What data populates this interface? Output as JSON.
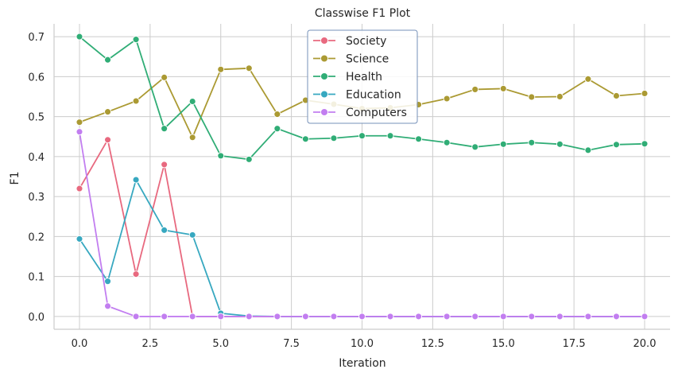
{
  "chart_data": {
    "type": "line",
    "title": "Classwise F1 Plot",
    "xlabel": "Iteration",
    "ylabel": "F1",
    "xlim": [
      -0.9,
      20.9
    ],
    "ylim": [
      -0.032,
      0.732
    ],
    "xticks": [
      0,
      2.5,
      5,
      7.5,
      10,
      12.5,
      15,
      17.5,
      20
    ],
    "xtick_labels": [
      "0.0",
      "2.5",
      "5.0",
      "7.5",
      "10.0",
      "12.5",
      "15.0",
      "17.5",
      "20.0"
    ],
    "yticks": [
      0,
      0.1,
      0.2,
      0.3,
      0.4,
      0.5,
      0.6,
      0.7
    ],
    "ytick_labels": [
      "0.0",
      "0.1",
      "0.2",
      "0.3",
      "0.4",
      "0.5",
      "0.6",
      "0.7"
    ],
    "grid": true,
    "legend_position": "top-center",
    "series": [
      {
        "name": "Society",
        "color": "#e8697f",
        "x": [
          0,
          1,
          2,
          3,
          4,
          5,
          6,
          7,
          8,
          9,
          10,
          11,
          12,
          13,
          14,
          15,
          16,
          17,
          18,
          19,
          20
        ],
        "values": [
          0.32,
          0.442,
          0.106,
          0.38,
          0,
          0,
          0,
          0,
          0,
          0,
          0,
          0,
          0,
          0,
          0,
          0,
          0,
          0,
          0,
          0,
          0
        ]
      },
      {
        "name": "Science",
        "color": "#ab9a33",
        "x": [
          0,
          1,
          2,
          3,
          4,
          5,
          6,
          7,
          8,
          9,
          10,
          11,
          12,
          13,
          14,
          15,
          16,
          17,
          18,
          19,
          20
        ],
        "values": [
          0.486,
          0.512,
          0.539,
          0.598,
          0.448,
          0.618,
          0.621,
          0.506,
          0.541,
          0.531,
          0.52,
          0.522,
          0.53,
          0.545,
          0.568,
          0.57,
          0.549,
          0.55,
          0.594,
          0.552,
          0.558
        ]
      },
      {
        "name": "Health",
        "color": "#30ad76",
        "x": [
          0,
          1,
          2,
          3,
          4,
          5,
          6,
          7,
          8,
          9,
          10,
          11,
          12,
          13,
          14,
          15,
          16,
          17,
          18,
          19,
          20
        ],
        "values": [
          0.7,
          0.642,
          0.693,
          0.47,
          0.538,
          0.402,
          0.393,
          0.47,
          0.444,
          0.446,
          0.452,
          0.452,
          0.444,
          0.435,
          0.424,
          0.431,
          0.435,
          0.431,
          0.416,
          0.43,
          0.432
        ]
      },
      {
        "name": "Education",
        "color": "#37a8c0",
        "x": [
          0,
          1,
          2,
          3,
          4,
          5,
          6,
          7,
          8,
          9,
          10,
          11,
          12,
          13,
          14,
          15,
          16,
          17,
          18,
          19,
          20
        ],
        "values": [
          0.194,
          0.088,
          0.342,
          0.216,
          0.204,
          0.008,
          0.001,
          0,
          0,
          0,
          0,
          0,
          0,
          0,
          0,
          0,
          0,
          0,
          0,
          0,
          0
        ]
      },
      {
        "name": "Computers",
        "color": "#c27ef0",
        "x": [
          0,
          1,
          2,
          3,
          4,
          5,
          6,
          7,
          8,
          9,
          10,
          11,
          12,
          13,
          14,
          15,
          16,
          17,
          18,
          19,
          20
        ],
        "values": [
          0.462,
          0.026,
          0,
          0,
          0,
          0,
          0,
          0,
          0,
          0,
          0,
          0,
          0,
          0,
          0,
          0,
          0,
          0,
          0,
          0,
          0
        ]
      }
    ]
  }
}
